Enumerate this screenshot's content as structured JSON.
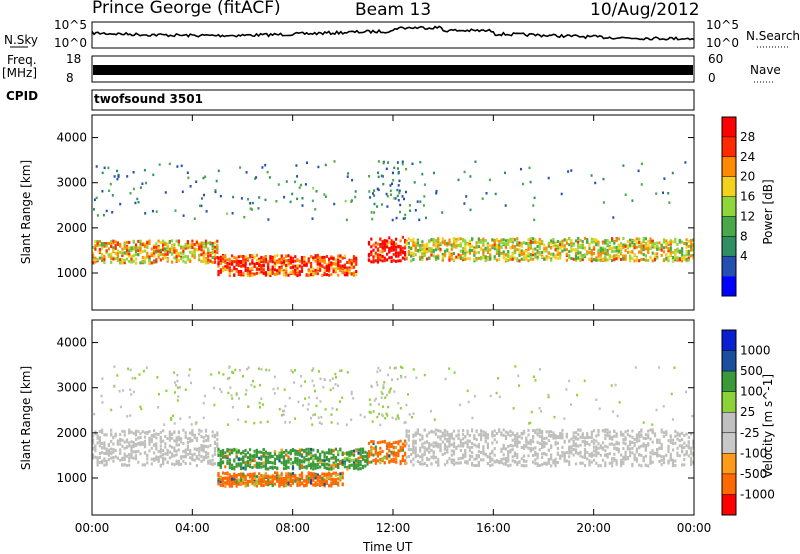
{
  "header": {
    "station": "Prince George (fitACF)",
    "beam": "Beam 13",
    "date": "10/Aug/2012"
  },
  "side_labels": {
    "nsky": "N.Sky",
    "freq": "Freq.",
    "freq_unit": "[MHz]",
    "cpid": "CPID",
    "nsearch": "N.Search",
    "nave": "Nave",
    "cpid_value": "twofsound 3501"
  },
  "strip_ticks": {
    "noise_top": "10^5",
    "noise_bottom": "10^0",
    "freq_top": "18",
    "freq_bottom": "8",
    "nave_top": "60",
    "nave_bottom": "0"
  },
  "colors": {
    "power": [
      "#0000ff",
      "#234fb0",
      "#2f8f63",
      "#49a94a",
      "#8fd63a",
      "#f2d21e",
      "#ff8a00",
      "#ff2a00",
      "#ff0000"
    ],
    "velocity": [
      "#ff0000",
      "#ff6a00",
      "#ff9a1a",
      "#c8c8c8",
      "#c0c0c0",
      "#8ed23a",
      "#3a9a3a",
      "#1a4fa0",
      "#0a20d0"
    ],
    "ground_scatter": "#bfbfbc"
  },
  "chart_data": [
    {
      "type": "heatmap",
      "title": "Power",
      "ylabel": "Slant Range [km]",
      "xlabel": "",
      "xlim": [
        "00:00",
        "00:00"
      ],
      "ylim": [
        180,
        4500
      ],
      "yticks": [
        1000,
        2000,
        3000,
        4000
      ],
      "xticks": [
        "00:00",
        "04:00",
        "08:00",
        "12:00",
        "16:00",
        "20:00",
        "00:00"
      ],
      "colorbar": {
        "label": "Power [dB]",
        "ticks": [
          4,
          8,
          12,
          16,
          20,
          24,
          28
        ]
      },
      "echo_bands": [
        {
          "start_hour": 0.0,
          "end_hour": 5.0,
          "center_km": 1500,
          "width_km": 500,
          "level": 20
        },
        {
          "start_hour": 5.0,
          "end_hour": 10.5,
          "center_km": 1200,
          "width_km": 450,
          "level": 26
        },
        {
          "start_hour": 11.0,
          "end_hour": 12.5,
          "center_km": 1550,
          "width_km": 550,
          "level": 27
        },
        {
          "start_hour": 12.5,
          "end_hour": 24.0,
          "center_km": 1550,
          "width_km": 500,
          "level": 18
        }
      ]
    },
    {
      "type": "heatmap",
      "title": "Velocity",
      "ylabel": "Slant Range [km]",
      "xlabel": "Time UT",
      "xlim": [
        "00:00",
        "00:00"
      ],
      "ylim": [
        180,
        4500
      ],
      "yticks": [
        1000,
        2000,
        3000,
        4000
      ],
      "xticks": [
        "00:00",
        "04:00",
        "08:00",
        "12:00",
        "16:00",
        "20:00",
        "00:00"
      ],
      "colorbar": {
        "label": "Velocity [m s^-1]",
        "ticks": [
          1000,
          500,
          100,
          25,
          -25,
          -100,
          -500,
          -1000
        ]
      },
      "echo_bands": [
        {
          "start_hour": 0.0,
          "end_hour": 5.0,
          "center_km": 1700,
          "width_km": 800,
          "level": "ground"
        },
        {
          "start_hour": 5.0,
          "end_hour": 11.0,
          "center_km": 1450,
          "width_km": 450,
          "level": 500
        },
        {
          "start_hour": 5.0,
          "end_hour": 10.0,
          "center_km": 1000,
          "width_km": 300,
          "level": -500
        },
        {
          "start_hour": 11.0,
          "end_hour": 12.5,
          "center_km": 1600,
          "width_km": 500,
          "level": -500
        },
        {
          "start_hour": 12.5,
          "end_hour": 24.0,
          "center_km": 1700,
          "width_km": 800,
          "level": "ground"
        }
      ]
    }
  ]
}
